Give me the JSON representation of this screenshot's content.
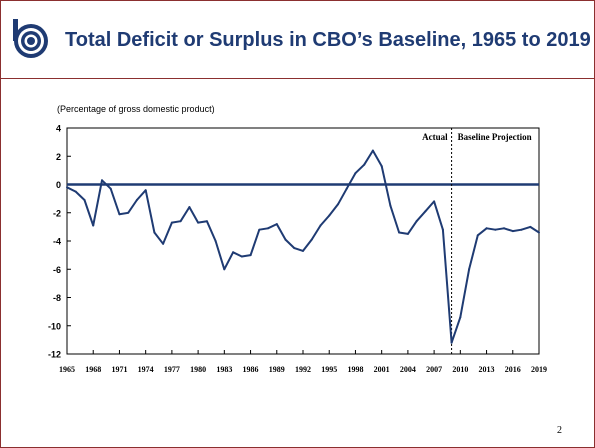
{
  "title": "Total Deficit or Surplus in CBO’s Baseline, 1965 to 2019",
  "page_number": "2",
  "colors": {
    "accent": "#1f3b73",
    "border": "#8b2f2f"
  },
  "chart_data": {
    "type": "line",
    "ylabel": "(Percentage of gross domestic product)",
    "ylim": [
      -12,
      4
    ],
    "yticks": [
      4,
      2,
      0,
      -2,
      -4,
      -6,
      -8,
      -10,
      -12
    ],
    "xlim": [
      1965,
      2019
    ],
    "xticks": [
      1965,
      1968,
      1971,
      1974,
      1977,
      1980,
      1983,
      1986,
      1989,
      1992,
      1995,
      1998,
      2001,
      2004,
      2007,
      2010,
      2013,
      2016,
      2019
    ],
    "divider_x": 2009,
    "divider_labels": {
      "left": "Actual",
      "right": "Baseline Projection"
    },
    "zero_line": true,
    "series": [
      {
        "x": [
          1965,
          1966,
          1967,
          1968,
          1969,
          1970,
          1971,
          1972,
          1973,
          1974,
          1975,
          1976,
          1977,
          1978,
          1979,
          1980,
          1981,
          1982,
          1983,
          1984,
          1985,
          1986,
          1987,
          1988,
          1989,
          1990,
          1991,
          1992,
          1993,
          1994,
          1995,
          1996,
          1997,
          1998,
          1999,
          2000,
          2001,
          2002,
          2003,
          2004,
          2005,
          2006,
          2007,
          2008,
          2009,
          2010,
          2011,
          2012,
          2013,
          2014,
          2015,
          2016,
          2017,
          2018,
          2019
        ],
        "y": [
          -0.2,
          -0.5,
          -1.1,
          -2.9,
          0.3,
          -0.3,
          -2.1,
          -2.0,
          -1.1,
          -0.4,
          -3.4,
          -4.2,
          -2.7,
          -2.6,
          -1.6,
          -2.7,
          -2.6,
          -4.0,
          -6.0,
          -4.8,
          -5.1,
          -5.0,
          -3.2,
          -3.1,
          -2.8,
          -3.9,
          -4.5,
          -4.7,
          -3.9,
          -2.9,
          -2.2,
          -1.4,
          -0.3,
          0.8,
          1.4,
          2.4,
          1.3,
          -1.5,
          -3.4,
          -3.5,
          -2.6,
          -1.9,
          -1.2,
          -3.2,
          -11.2,
          -9.4,
          -6.0,
          -3.6,
          -3.1,
          -3.2,
          -3.1,
          -3.3,
          -3.2,
          -3.0,
          -3.4
        ]
      }
    ]
  }
}
